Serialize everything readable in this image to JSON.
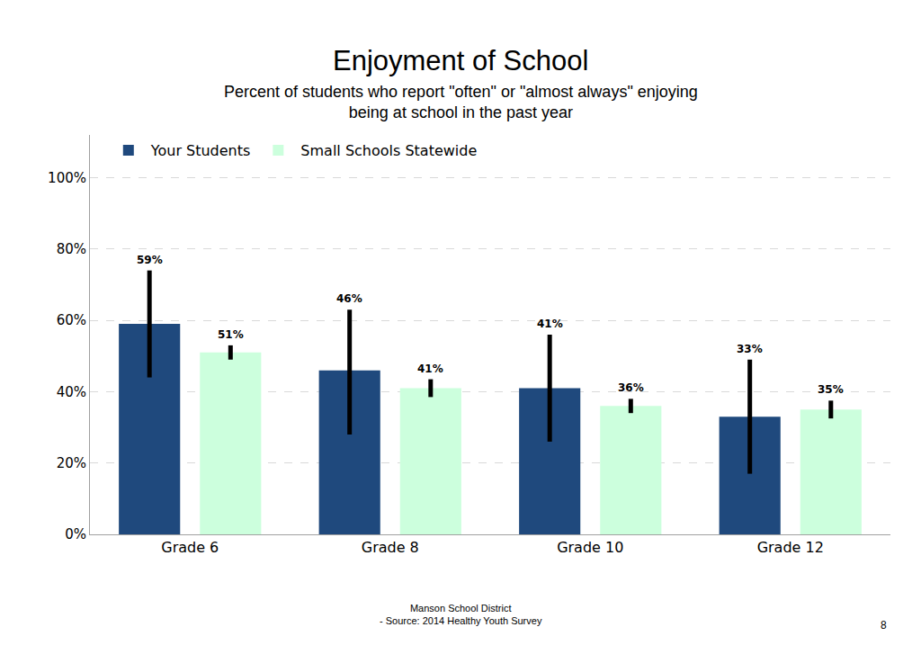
{
  "chart_data": {
    "type": "bar",
    "title": "Enjoyment of School",
    "subtitle": [
      "Percent of students who report \"often\" or \"almost always\" enjoying",
      "being at school in the past year"
    ],
    "categories": [
      "Grade 6",
      "Grade 8",
      "Grade 10",
      "Grade 12"
    ],
    "series": [
      {
        "name": "Your Students",
        "color": "#1f497d",
        "values": [
          59,
          46,
          41,
          33
        ],
        "value_labels": [
          "59%",
          "46%",
          "41%",
          "33%"
        ],
        "error_plus": [
          15,
          17,
          15,
          16
        ],
        "error_minus": [
          15,
          18,
          15,
          16
        ]
      },
      {
        "name": "Small Schools Statewide",
        "color": "#ccffdd",
        "values": [
          51,
          41,
          36,
          35
        ],
        "value_labels": [
          "51%",
          "41%",
          "36%",
          "35%"
        ],
        "error_plus": [
          2,
          2.5,
          2,
          2.5
        ],
        "error_minus": [
          2,
          2.5,
          2,
          2.5
        ]
      }
    ],
    "ylim": [
      0,
      112
    ],
    "yticks": [
      {
        "value": 0,
        "label": "0%"
      },
      {
        "value": 20,
        "label": "20%"
      },
      {
        "value": 40,
        "label": "40%"
      },
      {
        "value": 60,
        "label": "60%"
      },
      {
        "value": 80,
        "label": "80%"
      },
      {
        "value": 100,
        "label": "100%"
      }
    ],
    "grid": true,
    "legend": "top",
    "data_labels": true,
    "footer": [
      "Manson School District",
      "- Source: 2014 Healthy Youth Survey"
    ],
    "page_number": "8"
  }
}
